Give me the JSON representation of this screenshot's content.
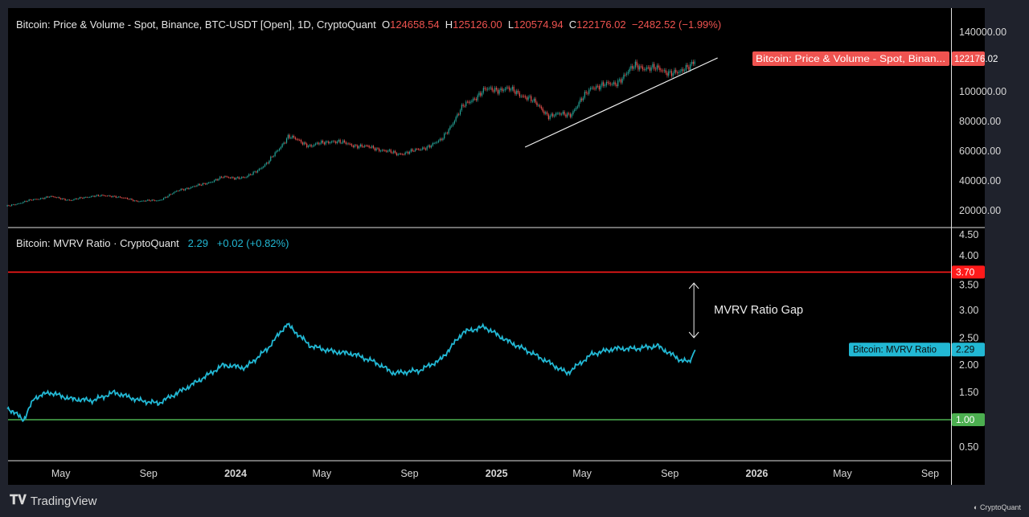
{
  "price_legend": {
    "title": "Bitcoin: Price & Volume - Spot, Binance, BTC-USDT [Open], 1D, CryptoQuant",
    "o_label": "O",
    "o": "124658.54",
    "h_label": "H",
    "h": "125126.00",
    "l_label": "L",
    "l": "120574.94",
    "c_label": "C",
    "c": "122176.02",
    "change": "−2482.52 (−1.99%)"
  },
  "mvrv_legend": {
    "title": "Bitcoin: MVRV Ratio · CryptoQuant",
    "value": "2.29",
    "change": "+0.02 (+0.82%)"
  },
  "footer": {
    "brand": "TradingView",
    "watermark": "CryptoQuant"
  },
  "colors": {
    "up": "#26a69a",
    "down": "#ef5350",
    "mvrv": "#22b8d4",
    "upper_band": "#ff1a1a",
    "lower_band": "#4caf50",
    "background": "#000000",
    "frame": "#1f222c"
  },
  "chart_data": [
    {
      "type": "candlestick",
      "series_name": "Bitcoin: Price & Volume - Spot, Binan...",
      "last_value_label": "122176.02",
      "y_ticks": [
        "140000.00",
        "100000.00",
        "80000.00",
        "60000.00",
        "40000.00",
        "20000.00"
      ],
      "ylim": [
        20000,
        140000
      ],
      "monthly_close": [
        [
          "2023-02-15",
          23000
        ],
        [
          "2023-03-15",
          26500
        ],
        [
          "2023-04-15",
          29500
        ],
        [
          "2023-05-15",
          27000
        ],
        [
          "2023-06-15",
          30000
        ],
        [
          "2023-07-15",
          29800
        ],
        [
          "2023-08-15",
          26500
        ],
        [
          "2023-09-15",
          26800
        ],
        [
          "2023-10-15",
          34000
        ],
        [
          "2023-11-15",
          37500
        ],
        [
          "2023-12-15",
          42500
        ],
        [
          "2024-01-15",
          42000
        ],
        [
          "2024-02-15",
          52000
        ],
        [
          "2024-03-15",
          70000
        ],
        [
          "2024-04-15",
          63500
        ],
        [
          "2024-05-15",
          67000
        ],
        [
          "2024-06-15",
          64000
        ],
        [
          "2024-07-15",
          62000
        ],
        [
          "2024-08-15",
          58000
        ],
        [
          "2024-09-15",
          61000
        ],
        [
          "2024-10-15",
          67000
        ],
        [
          "2024-11-15",
          90000
        ],
        [
          "2024-12-15",
          101000
        ],
        [
          "2025-01-15",
          102000
        ],
        [
          "2025-02-15",
          96000
        ],
        [
          "2025-03-15",
          84000
        ],
        [
          "2025-04-15",
          85000
        ],
        [
          "2025-05-15",
          103500
        ],
        [
          "2025-06-15",
          105000
        ],
        [
          "2025-07-15",
          117500
        ],
        [
          "2025-08-15",
          115000
        ],
        [
          "2025-09-15",
          112000
        ],
        [
          "2025-10-07",
          122176
        ]
      ],
      "trendline": [
        [
          "2025-02-10",
          62700
        ],
        [
          "2025-11-07",
          122700
        ]
      ]
    },
    {
      "type": "line",
      "series_name": "Bitcoin: MVRV Ratio",
      "last_value_label": "2.29",
      "y_ticks": [
        "4.50",
        "4.00",
        "3.50",
        "3.00",
        "2.50",
        "2.00",
        "1.50",
        "1.00",
        "0.50"
      ],
      "ylim": [
        0.5,
        4.5
      ],
      "horizontal_lines": [
        {
          "value": 3.7,
          "label": "3.70",
          "color": "#ff1a1a"
        },
        {
          "value": 1.0,
          "label": "1.00",
          "color": "#4caf50"
        }
      ],
      "points": [
        [
          "2023-02-15",
          1.22
        ],
        [
          "2023-03-10",
          1.0
        ],
        [
          "2023-03-25",
          1.4
        ],
        [
          "2023-04-15",
          1.5
        ],
        [
          "2023-05-15",
          1.38
        ],
        [
          "2023-06-15",
          1.35
        ],
        [
          "2023-07-15",
          1.5
        ],
        [
          "2023-08-20",
          1.35
        ],
        [
          "2023-09-15",
          1.3
        ],
        [
          "2023-10-20",
          1.55
        ],
        [
          "2023-11-15",
          1.75
        ],
        [
          "2023-12-15",
          2.0
        ],
        [
          "2024-01-15",
          1.95
        ],
        [
          "2024-02-15",
          2.3
        ],
        [
          "2024-03-13",
          2.75
        ],
        [
          "2024-04-15",
          2.35
        ],
        [
          "2024-05-15",
          2.25
        ],
        [
          "2024-06-15",
          2.2
        ],
        [
          "2024-07-15",
          2.05
        ],
        [
          "2024-08-10",
          1.85
        ],
        [
          "2024-09-15",
          1.9
        ],
        [
          "2024-10-15",
          2.1
        ],
        [
          "2024-11-15",
          2.6
        ],
        [
          "2024-12-15",
          2.7
        ],
        [
          "2025-01-15",
          2.45
        ],
        [
          "2025-02-15",
          2.25
        ],
        [
          "2025-03-15",
          2.05
        ],
        [
          "2025-04-10",
          1.85
        ],
        [
          "2025-05-15",
          2.2
        ],
        [
          "2025-06-15",
          2.3
        ],
        [
          "2025-07-15",
          2.3
        ],
        [
          "2025-08-15",
          2.35
        ],
        [
          "2025-09-15",
          2.1
        ],
        [
          "2025-09-28",
          2.05
        ],
        [
          "2025-10-07",
          2.29
        ]
      ],
      "annotation": {
        "text": "MVRV Ratio Gap",
        "from": 3.5,
        "to": 2.5,
        "date": "2025-10-07"
      }
    }
  ],
  "x_ticks": [
    {
      "label": "May",
      "date": "2023-05-01",
      "bold": false
    },
    {
      "label": "Sep",
      "date": "2023-09-01",
      "bold": false
    },
    {
      "label": "2024",
      "date": "2024-01-01",
      "bold": true
    },
    {
      "label": "May",
      "date": "2024-05-01",
      "bold": false
    },
    {
      "label": "Sep",
      "date": "2024-09-01",
      "bold": false
    },
    {
      "label": "2025",
      "date": "2025-01-01",
      "bold": true
    },
    {
      "label": "May",
      "date": "2025-05-01",
      "bold": false
    },
    {
      "label": "Sep",
      "date": "2025-09-01",
      "bold": false
    },
    {
      "label": "2026",
      "date": "2026-01-01",
      "bold": true
    },
    {
      "label": "May",
      "date": "2026-05-01",
      "bold": false
    },
    {
      "label": "Sep",
      "date": "2026-09-01",
      "bold": false
    }
  ]
}
